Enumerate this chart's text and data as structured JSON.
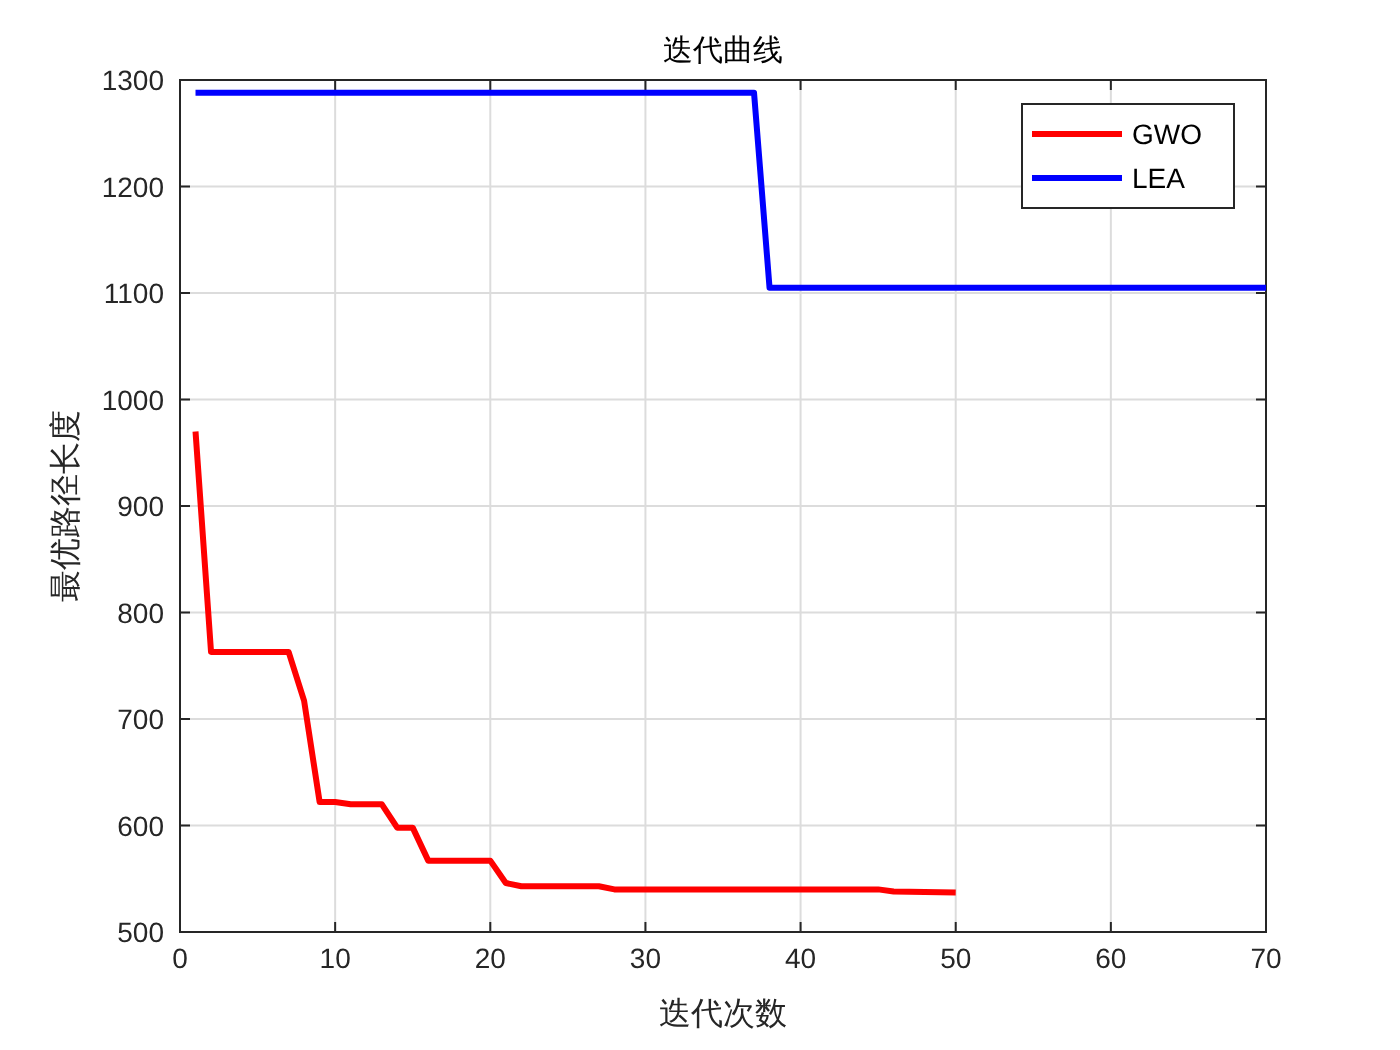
{
  "chart_data": {
    "type": "line",
    "title": "迭代曲线",
    "xlabel": "迭代次数",
    "ylabel": "最优路径长度",
    "xlim": [
      0,
      70
    ],
    "ylim": [
      500,
      1300
    ],
    "xticks": [
      0,
      10,
      20,
      30,
      40,
      50,
      60,
      70
    ],
    "yticks": [
      500,
      600,
      700,
      800,
      900,
      1000,
      1100,
      1200,
      1300
    ],
    "grid": true,
    "legend": "top right",
    "series": [
      {
        "name": "GWO",
        "color": "#ff0000",
        "x": [
          1,
          2,
          7,
          8,
          9,
          10,
          11,
          13,
          14,
          15,
          16,
          20,
          21,
          22,
          27,
          28,
          45,
          46,
          50
        ],
        "values": [
          970,
          763,
          763,
          717,
          622,
          622,
          620,
          620,
          598,
          598,
          567,
          567,
          546,
          543,
          543,
          540,
          540,
          538,
          537
        ]
      },
      {
        "name": "LEA",
        "color": "#0000ff",
        "x": [
          1,
          37,
          38,
          70
        ],
        "values": [
          1288,
          1288,
          1105,
          1105
        ]
      }
    ]
  }
}
